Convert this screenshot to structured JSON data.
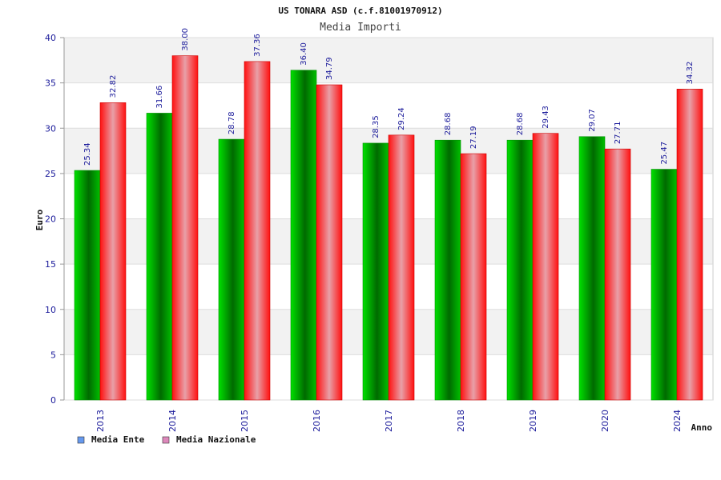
{
  "chart_data": {
    "type": "bar",
    "title": "US TONARA ASD (c.f.81001970912)",
    "subtitle": "Media Importi",
    "xlabel": "Anno",
    "ylabel": "Euro",
    "ylim": [
      0,
      40
    ],
    "yticks": [
      0,
      5,
      10,
      15,
      20,
      25,
      30,
      35,
      40
    ],
    "grid": true,
    "legend_position": "bottom-left",
    "categories": [
      "2013",
      "2014",
      "2015",
      "2016",
      "2017",
      "2018",
      "2019",
      "2020",
      "2024"
    ],
    "series": [
      {
        "name": "Media Ente",
        "values": [
          25.34,
          31.66,
          28.78,
          36.4,
          28.35,
          28.68,
          28.68,
          29.07,
          25.47
        ],
        "labels": [
          "25.34",
          "31.66",
          "28.78",
          "36.40",
          "28.35",
          "28.68",
          "28.68",
          "29.07",
          "25.47"
        ],
        "color": "#00c000",
        "legend_color": "#6699ee"
      },
      {
        "name": "Media Nazionale",
        "values": [
          32.82,
          38.0,
          37.36,
          34.79,
          29.24,
          27.19,
          29.43,
          27.71,
          34.32
        ],
        "labels": [
          "32.82",
          "38.00",
          "37.36",
          "34.79",
          "29.24",
          "27.19",
          "29.43",
          "27.71",
          "34.32"
        ],
        "color": "#ff1a1a",
        "legend_color": "#dd88bb"
      }
    ]
  }
}
